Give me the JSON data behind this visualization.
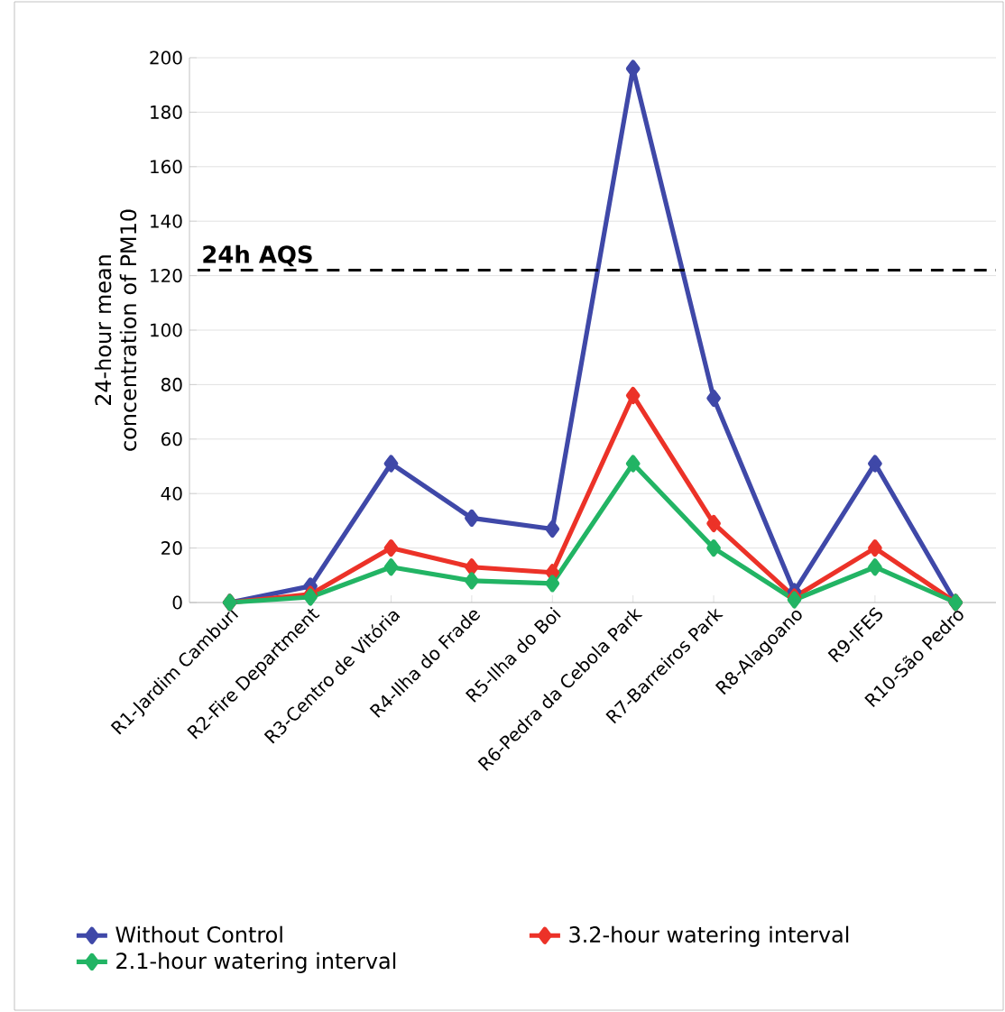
{
  "chart_data": {
    "type": "line",
    "ylabel": "24-hour mean concentration of PM10",
    "categories": [
      "R1-Jardim Camburi",
      "R2-Fire Department",
      "R3-Centro de Vitória",
      "R4-Ilha do Frade",
      "R5-Ilha do Boi",
      "R6-Pedra da Cebola Park",
      "R7-Barreiros Park",
      "R8-Alagoano",
      "R9-IFES",
      "R10-São Pedro"
    ],
    "series": [
      {
        "name": "Without Control",
        "color": "#3f48a8",
        "values": [
          0,
          6,
          51,
          31,
          27,
          196,
          75,
          4,
          51,
          0
        ]
      },
      {
        "name": "3.2-hour watering interval",
        "color": "#ec3228",
        "values": [
          0,
          3,
          20,
          13,
          11,
          76,
          29,
          2,
          20,
          0
        ]
      },
      {
        "name": "2.1-hour watering interval",
        "color": "#22b464",
        "values": [
          0,
          2,
          13,
          8,
          7,
          51,
          20,
          1,
          13,
          0
        ]
      }
    ],
    "ylim": [
      0,
      200
    ],
    "yticks": [
      0,
      20,
      40,
      60,
      80,
      100,
      120,
      140,
      160,
      180,
      200
    ],
    "ref_lines": [
      {
        "axis": "y",
        "value": 122,
        "label": "24h AQS",
        "color": "#000000",
        "line_style": "dashed"
      }
    ],
    "grid": "y",
    "legend": "bottom",
    "marker": "diamond",
    "line_style": "solid"
  }
}
